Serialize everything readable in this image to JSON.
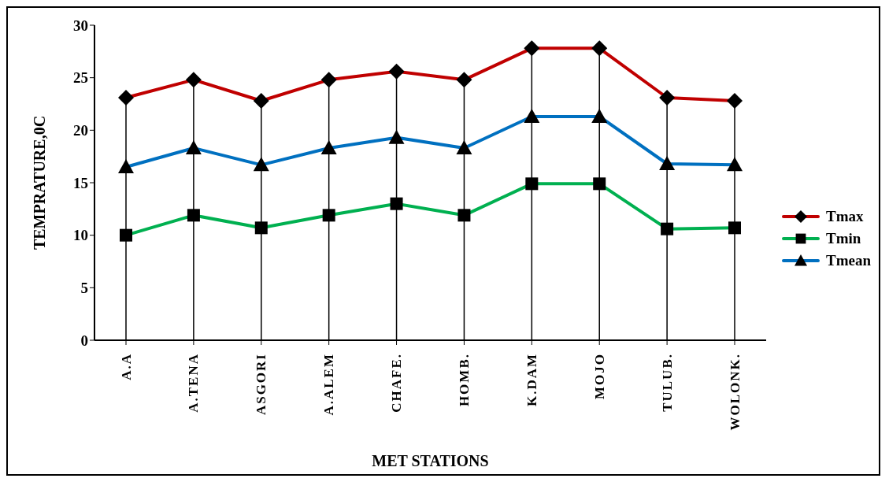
{
  "chart_data": {
    "type": "line",
    "xlabel": "MET STATIONS",
    "ylabel": "TEMPRATURE,0C",
    "categories": [
      "A.A",
      "A.TENA",
      "ASGORI",
      "A.ALEM",
      "CHAFE.",
      "HOMB.",
      "K.DAM",
      "MOJO",
      "TULUB.",
      "WOLONK."
    ],
    "series": [
      {
        "name": "Tmax",
        "color": "#c00000",
        "marker": "diamond",
        "values": [
          23.1,
          24.8,
          22.8,
          24.8,
          25.6,
          24.8,
          27.8,
          27.8,
          23.1,
          22.8
        ]
      },
      {
        "name": "Tmin",
        "color": "#00b050",
        "marker": "square",
        "values": [
          10.0,
          11.9,
          10.7,
          11.9,
          13.0,
          11.9,
          14.9,
          14.9,
          10.6,
          10.7
        ]
      },
      {
        "name": "Tmean",
        "color": "#0070c0",
        "marker": "triangle",
        "values": [
          16.5,
          18.3,
          16.7,
          18.3,
          19.3,
          18.3,
          21.3,
          21.3,
          16.8,
          16.7
        ]
      }
    ],
    "ylim": [
      0,
      30
    ],
    "yticks": [
      0,
      5,
      10,
      15,
      20,
      25,
      30
    ],
    "grid": "x",
    "legend": "right"
  }
}
